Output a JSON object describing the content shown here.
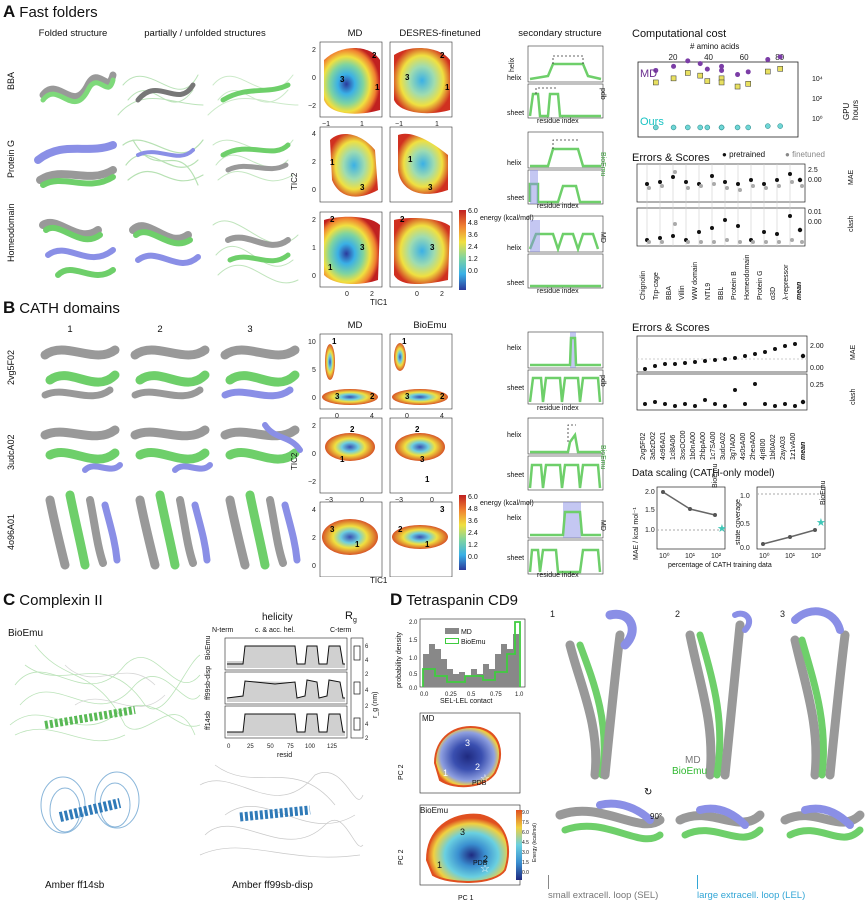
{
  "panels": {
    "A": {
      "letter": "A",
      "title": "Fast folders",
      "col_folded": "Folded structure",
      "col_partial": "partially / unfolded structures",
      "rows": [
        "BBA",
        "Protein G",
        "Homeodomain"
      ],
      "fes_titles": [
        "MD",
        "DESRES-finetuned"
      ],
      "sec_title": "secondary structure",
      "tic1": "TIC1",
      "tic2": "TIC2",
      "energy_label": "energy\n(kcal/mol)",
      "energy_ticks": [
        "6.0",
        "4.8",
        "3.6",
        "2.4",
        "1.2",
        "0.0"
      ],
      "helix": "helix",
      "sheet": "sheet",
      "residue_index": "residue index",
      "legend": [
        "pdb",
        "BioEmu",
        "MD"
      ],
      "cost_title": "Computational cost",
      "cost_xlabel": "# amino acids",
      "cost_ylabel": "GPU hours",
      "cost_xticks": [
        "20",
        "40",
        "60",
        "80"
      ],
      "cost_yticks": [
        "10⁴",
        "10²",
        "10⁰"
      ],
      "md_label": "MD",
      "ours_label": "Ours",
      "errors_title": "Errors & Scores",
      "pretrained": "pretrained",
      "finetuned": "finetuned",
      "mae": "MAE",
      "clash": "clash",
      "mae_ticks": [
        "2.5",
        "0.00"
      ],
      "clash_ticks": [
        "0.01",
        "0.00"
      ],
      "proteins": [
        "Chignolin",
        "Trp-cage",
        "BBA",
        "Villin",
        "WW domain",
        "NTL9",
        "BBL",
        "Protein B",
        "Homeodomain",
        "Protein G",
        "α3D",
        "λ-repressor",
        "mean"
      ]
    },
    "B": {
      "letter": "B",
      "title": "CATH domains",
      "cols": [
        "1",
        "2",
        "3"
      ],
      "rows": [
        "2vg5F02",
        "3udcA02",
        "4o96A01"
      ],
      "fes_titles": [
        "MD",
        "BioEmu"
      ],
      "errors_title": "Errors & Scores",
      "mae": "MAE",
      "clash": "clash",
      "mae_ticks": [
        "2.00",
        "0.00"
      ],
      "clash_ticks": [
        "0.25"
      ],
      "domains": [
        "2vg5F02",
        "3a5zD02",
        "4o96A01",
        "1cl8A06",
        "3osOC00",
        "1b0nA00",
        "2hbpA00",
        "1c7SA00",
        "3udcA02",
        "3g7IA00",
        "4s0sA00",
        "2heoA00",
        "4jr8I00",
        "1bl0A02",
        "2ayA03",
        "1z1vA00",
        "mean"
      ],
      "scaling_title": "Data scaling (CATH-only model)",
      "scaling_xlabel": "percentage of CATH training data",
      "scaling_ylabel_left": "MAE / kcal mol⁻¹",
      "scaling_ylabel_right": "state coverage",
      "bioemu": "BioEmu"
    },
    "C": {
      "letter": "C",
      "title": "Complexin II",
      "bioemu": "BioEmu",
      "helicity": "helicity",
      "rg": "R",
      "regions": [
        "N-term",
        "c. & acc. hel.",
        "C-term"
      ],
      "rows": [
        "BioEmu",
        "ff99sb-disp",
        "ff14sb"
      ],
      "resid": "resid",
      "resid_ticks": [
        "0",
        "25",
        "50",
        "75",
        "100",
        "125"
      ],
      "rg_unit": "r_g (nm)",
      "labels": [
        "Amber ff14sb",
        "Amber ff99sb-disp"
      ]
    },
    "D": {
      "letter": "D",
      "title": "Tetraspanin CD9",
      "hist_ylabel": "probability density",
      "hist_xlabel": "SEL-LEL contact",
      "legend": [
        "MD",
        "BioEmu"
      ],
      "pc1": "PC 1",
      "pc2": "PC 2",
      "pdb": "PDB",
      "energy": "Energy (kcal/mol)",
      "energy_ticks": [
        "9.0",
        "7.5",
        "6.0",
        "4.5",
        "3.0",
        "1.5",
        "0.0"
      ],
      "struct_nums": [
        "1",
        "2",
        "3"
      ],
      "md": "MD",
      "bioemu_g": "BioEmu",
      "rot": "90°",
      "sel": "small extracell. loop (SEL)",
      "lel": "large extracell. loop (LEL)"
    }
  },
  "chart_data": [
    {
      "type": "scatter",
      "title": "Computational cost",
      "xlabel": "# amino acids",
      "ylabel": "GPU hours",
      "series": [
        {
          "name": "MD",
          "x": [
            10,
            20,
            28,
            35,
            39,
            47,
            47,
            56,
            62,
            73,
            80
          ],
          "y": [
            3.5,
            3.8,
            4.2,
            4.0,
            3.6,
            3.8,
            3.5,
            3.2,
            3.4,
            4.3,
            4.5
          ]
        },
        {
          "name": "Ours",
          "x": [
            10,
            20,
            28,
            35,
            39,
            47,
            47,
            56,
            62,
            73,
            80
          ],
          "y": [
            0.2,
            0.2,
            0.2,
            0.2,
            0.2,
            0.2,
            0.2,
            0.2,
            0.2,
            0.3,
            0.3
          ]
        }
      ]
    }
  ]
}
